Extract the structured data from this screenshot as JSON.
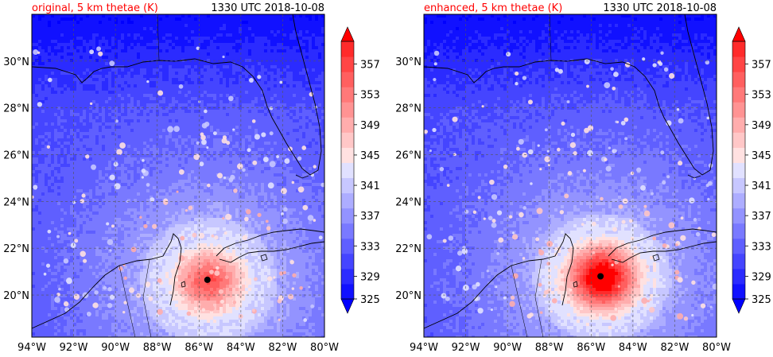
{
  "panels": [
    {
      "title_left": "original, 5 km thetae (K)",
      "title_right": "1330 UTC 2018-10-08",
      "storm_center": {
        "lon": -85.6,
        "lat": 20.65
      },
      "core_max_norm": 0.66
    },
    {
      "title_left": "enhanced, 5 km thetae (K)",
      "title_right": "1330 UTC 2018-10-08",
      "storm_center": {
        "lon": -85.55,
        "lat": 20.8
      },
      "core_max_norm": 0.9
    }
  ],
  "map": {
    "lon_range": [
      -94,
      -80
    ],
    "lat_range": [
      18.2,
      32.0
    ],
    "lon_ticks": [
      -94,
      -92,
      -90,
      -88,
      -86,
      -84,
      -82,
      -80
    ],
    "lon_tick_labels": [
      "94°W",
      "92°W",
      "90°W",
      "88°W",
      "86°W",
      "84°W",
      "82°W",
      "80°W"
    ],
    "lat_ticks": [
      20,
      22,
      24,
      26,
      28,
      30
    ],
    "lat_tick_labels": [
      "20°N",
      "22°N",
      "24°N",
      "26°N",
      "28°N",
      "30°N"
    ]
  },
  "colorbar": {
    "min": 325,
    "max": 359,
    "step": 2,
    "tick_values": [
      325,
      329,
      333,
      337,
      341,
      345,
      349,
      353,
      357
    ],
    "tick_labels": [
      "325",
      "329",
      "333",
      "337",
      "341",
      "345",
      "349",
      "353",
      "357"
    ],
    "colors": [
      "#1111ff",
      "#2b2bff",
      "#4545ff",
      "#5f5fff",
      "#7979ff",
      "#9393ff",
      "#adadff",
      "#c7c7ff",
      "#e1e1ff",
      "#ffe1e1",
      "#ffc7c7",
      "#ffadad",
      "#ff9393",
      "#ff7979",
      "#ff5f5f",
      "#ff4545",
      "#ff2b2b"
    ],
    "under_color": "#0000ff",
    "over_color": "#ff0000"
  }
}
